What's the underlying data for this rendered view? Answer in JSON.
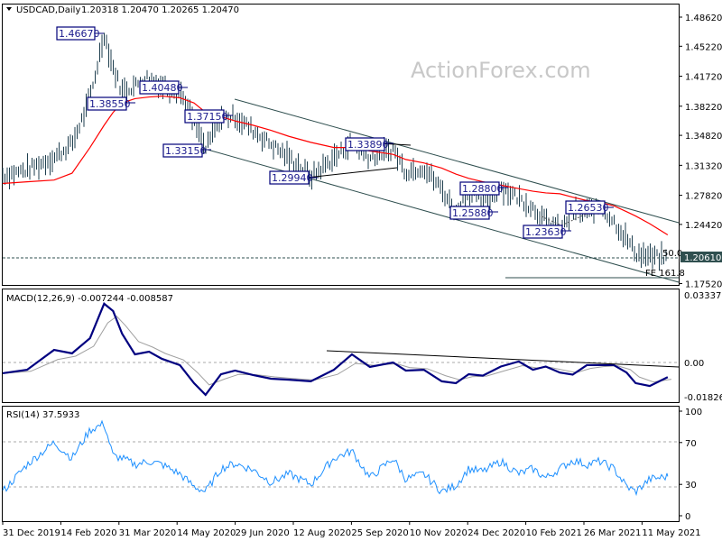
{
  "header": {
    "symbol": "USDCAD,Daily",
    "ohlc": "1.20318 1.20470 1.20265 1.20470"
  },
  "watermark": "ActionForex.com",
  "colors": {
    "bars": "#1f3f4f",
    "ma": "#ff0000",
    "macd_main": "#000080",
    "macd_signal": "#a0a0a0",
    "rsi": "#1e90ff",
    "channel": "#2f4f4f"
  },
  "annotations": [
    "1.46670",
    "1.38550",
    "1.40480",
    "1.37150",
    "1.33150",
    "1.33890",
    "1.29940",
    "1.28800",
    "1.25880",
    "1.26530",
    "1.23630"
  ],
  "fib_labels": {
    "level50": "50.0",
    "fe": "FE 161.8"
  },
  "current_price": "1.20610",
  "chart_data": [
    {
      "type": "line",
      "panel": "price",
      "title": "USDCAD,Daily",
      "yticks": [
        "1.48620",
        "1.45220",
        "1.41720",
        "1.38220",
        "1.34820",
        "1.31320",
        "1.27820",
        "1.24420",
        "1.17520"
      ],
      "ylim": [
        1.1752,
        1.4862
      ],
      "x": [
        "2019-12-31",
        "2020-01-19",
        "2020-02-09",
        "2020-02-23",
        "2020-03-08",
        "2020-03-19",
        "2020-03-26",
        "2020-04-02",
        "2020-04-12",
        "2020-04-23",
        "2020-05-03",
        "2020-05-17",
        "2020-05-28",
        "2020-06-06",
        "2020-06-18",
        "2020-06-29",
        "2020-07-13",
        "2020-07-27",
        "2020-08-10",
        "2020-08-27",
        "2020-09-14",
        "2020-09-28",
        "2020-10-12",
        "2020-10-30",
        "2020-11-09",
        "2020-11-23",
        "2020-12-07",
        "2020-12-18",
        "2020-12-28",
        "2021-01-08",
        "2021-01-22",
        "2021-02-05",
        "2021-02-16",
        "2021-02-26",
        "2021-03-09",
        "2021-03-19",
        "2021-03-30",
        "2021-04-09",
        "2021-04-20",
        "2021-04-30",
        "2021-05-07",
        "2021-05-18",
        "2021-06-01"
      ],
      "series": [
        {
          "values": [
            1.301,
            1.308,
            1.322,
            1.338,
            1.39,
            1.4667,
            1.427,
            1.4,
            1.406,
            1.417,
            1.406,
            1.4,
            1.364,
            1.3315,
            1.369,
            1.37,
            1.354,
            1.338,
            1.322,
            1.2994,
            1.322,
            1.3389,
            1.322,
            1.332,
            1.306,
            1.311,
            1.285,
            1.2588,
            1.285,
            1.27,
            1.288,
            1.275,
            1.264,
            1.248,
            1.2363,
            1.259,
            1.259,
            1.2653,
            1.248,
            1.227,
            1.211,
            1.206,
            1.2047
          ]
        },
        {
          "values": [
            1.292,
            1.294,
            1.296,
            1.304,
            1.334,
            1.36,
            1.375,
            1.386,
            1.391,
            1.393,
            1.394,
            1.392,
            1.386,
            1.375,
            1.37,
            1.365,
            1.36,
            1.354,
            1.347,
            1.34,
            1.334,
            1.334,
            1.33,
            1.326,
            1.32,
            1.316,
            1.31,
            1.303,
            1.298,
            1.294,
            1.29,
            1.286,
            1.283,
            1.281,
            1.28,
            1.276,
            1.272,
            1.27,
            1.266,
            1.259,
            1.254,
            1.245,
            1.232
          ]
        }
      ]
    },
    {
      "type": "line",
      "panel": "macd",
      "title": "MACD(12,26,9) -0.007244 -0.008587",
      "yticks": [
        "0.03337",
        "0.00",
        "-0.018262"
      ],
      "ylim": [
        -0.018262,
        0.03337
      ],
      "values": [
        -0.0053,
        -0.0036,
        0.0062,
        0.0045,
        0.012,
        0.029,
        0.0254,
        0.0142,
        0.004,
        0.0053,
        0.0018,
        -0.0013,
        -0.0102,
        -0.016,
        -0.0058,
        -0.004,
        -0.0062,
        -0.008,
        -0.0085,
        -0.0093,
        -0.0036,
        0.004,
        -0.0022,
        0.0,
        -0.004,
        -0.0036,
        -0.0093,
        -0.0102,
        -0.0058,
        -0.0065,
        -0.002,
        0.0005,
        -0.0036,
        -0.002,
        -0.005,
        -0.006,
        -0.0013,
        -0.0013,
        -0.0013,
        -0.005,
        -0.0102,
        -0.0116,
        -0.007244
      ]
    },
    {
      "type": "line",
      "panel": "rsi",
      "title": "RSI(14) 37.5933",
      "yticks": [
        "100",
        "70",
        "30",
        "0"
      ],
      "ylim": [
        0,
        100
      ],
      "levels": [
        70,
        30
      ],
      "values": [
        23,
        49,
        70,
        55,
        82,
        88,
        57,
        55,
        49,
        52,
        49,
        40,
        28,
        23,
        45,
        50,
        44,
        32,
        40,
        30,
        55,
        62,
        36,
        55,
        35,
        40,
        23,
        29,
        45,
        42,
        52,
        40,
        45,
        36,
        45,
        53,
        49,
        52,
        45,
        28,
        23,
        35,
        37.5933
      ]
    }
  ],
  "xticks": [
    "31 Dec 2019",
    "14 Feb 2020",
    "31 Mar 2020",
    "14 May 2020",
    "29 Jun 2020",
    "12 Aug 2020",
    "25 Sep 2020",
    "10 Nov 2020",
    "24 Dec 2020",
    "10 Feb 2021",
    "26 Mar 2021",
    "11 May 2021"
  ]
}
